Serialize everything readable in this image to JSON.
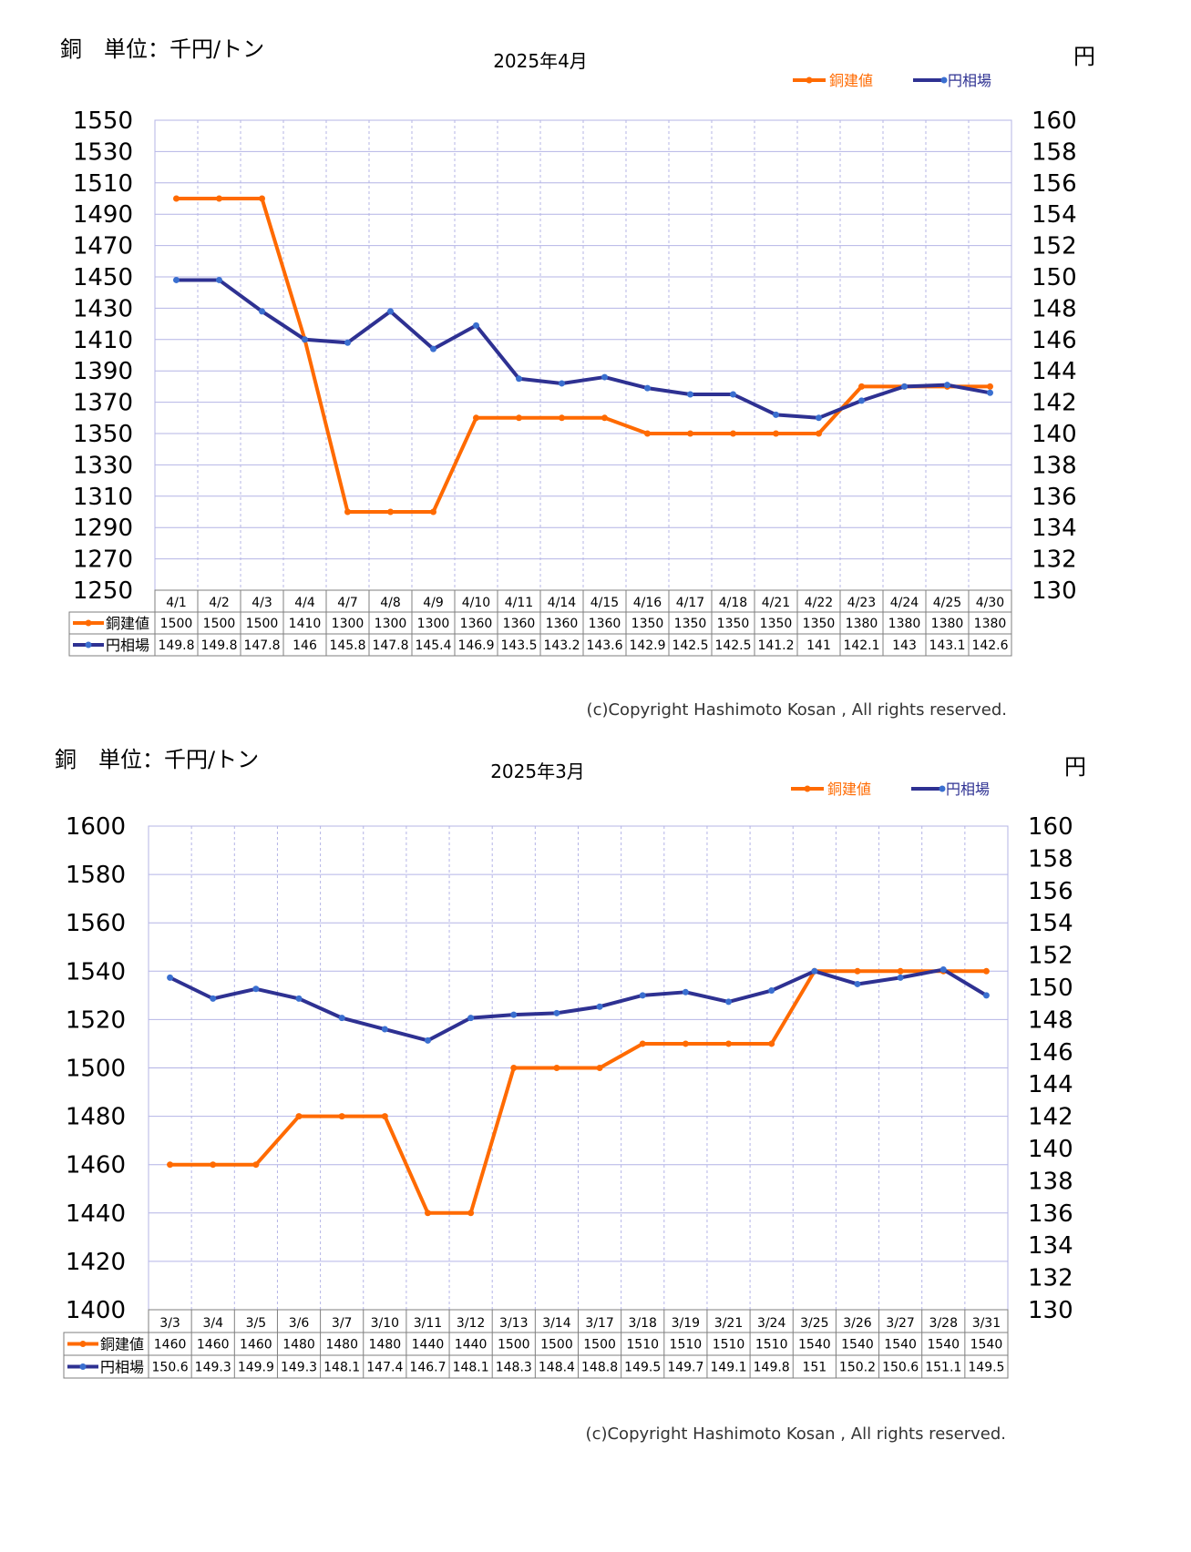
{
  "copyright": "(c)Copyright Hashimoto Kosan , All rights reserved.",
  "colors": {
    "copper": "#ff6a00",
    "yen": "#2e3192",
    "grid": "#b4b4e6",
    "border": "#7f7f7f"
  },
  "chart_data": [
    {
      "type": "line",
      "title": "2025年4月",
      "left_title": "銅　単位：千円/トン",
      "right_title": "円",
      "categories": [
        "4/1",
        "4/2",
        "4/3",
        "4/4",
        "4/7",
        "4/8",
        "4/9",
        "4/10",
        "4/11",
        "4/14",
        "4/15",
        "4/16",
        "4/17",
        "4/18",
        "4/21",
        "4/22",
        "4/23",
        "4/24",
        "4/25",
        "4/30"
      ],
      "y_left": {
        "min": 1250,
        "max": 1550,
        "step": 20,
        "ticks": [
          "1550",
          "1530",
          "1510",
          "1490",
          "1470",
          "1450",
          "1430",
          "1410",
          "1390",
          "1370",
          "1350",
          "1330",
          "1310",
          "1290",
          "1270",
          "1250"
        ]
      },
      "y_right": {
        "min": 130,
        "max": 160,
        "step": 2,
        "ticks": [
          "160",
          "158",
          "156",
          "154",
          "152",
          "150",
          "148",
          "146",
          "144",
          "142",
          "140",
          "138",
          "136",
          "134",
          "132",
          "130"
        ]
      },
      "series": [
        {
          "name": "銅建値",
          "axis": "left",
          "color": "#ff6a00",
          "values": [
            1500,
            1500,
            1500,
            1410,
            1300,
            1300,
            1300,
            1360,
            1360,
            1360,
            1360,
            1350,
            1350,
            1350,
            1350,
            1350,
            1380,
            1380,
            1380,
            1380
          ],
          "labels": [
            "1500",
            "1500",
            "1500",
            "1410",
            "1300",
            "1300",
            "1300",
            "1360",
            "1360",
            "1360",
            "1360",
            "1350",
            "1350",
            "1350",
            "1350",
            "1350",
            "1380",
            "1380",
            "1380",
            "1380"
          ]
        },
        {
          "name": "円相場",
          "axis": "right",
          "color": "#2e3192",
          "values": [
            149.8,
            149.8,
            147.8,
            146,
            145.8,
            147.8,
            145.4,
            146.9,
            143.5,
            143.2,
            143.6,
            142.9,
            142.5,
            142.5,
            141.2,
            141,
            142.1,
            143,
            143.1,
            142.6
          ],
          "labels": [
            "149.8",
            "149.8",
            "147.8",
            "146",
            "145.8",
            "147.8",
            "145.4",
            "146.9",
            "143.5",
            "143.2",
            "143.6",
            "142.9",
            "142.5",
            "142.5",
            "141.2",
            "141",
            "142.1",
            "143",
            "143.1",
            "142.6"
          ]
        }
      ],
      "legend": "top-right",
      "grid": true
    },
    {
      "type": "line",
      "title": "2025年3月",
      "left_title": "銅　単位：千円/トン",
      "right_title": "円",
      "categories": [
        "3/3",
        "3/4",
        "3/5",
        "3/6",
        "3/7",
        "3/10",
        "3/11",
        "3/12",
        "3/13",
        "3/14",
        "3/17",
        "3/18",
        "3/19",
        "3/21",
        "3/24",
        "3/25",
        "3/26",
        "3/27",
        "3/28",
        "3/31"
      ],
      "y_left": {
        "min": 1400,
        "max": 1600,
        "step": 20,
        "ticks": [
          "1600",
          "1580",
          "1560",
          "1540",
          "1520",
          "1500",
          "1480",
          "1460",
          "1440",
          "1420",
          "1400"
        ]
      },
      "y_right": {
        "min": 130,
        "max": 160,
        "step": 2,
        "ticks": [
          "160",
          "158",
          "156",
          "154",
          "152",
          "150",
          "148",
          "146",
          "144",
          "142",
          "140",
          "138",
          "136",
          "134",
          "132",
          "130"
        ]
      },
      "series": [
        {
          "name": "銅建値",
          "axis": "left",
          "color": "#ff6a00",
          "values": [
            1460,
            1460,
            1460,
            1480,
            1480,
            1480,
            1440,
            1440,
            1500,
            1500,
            1500,
            1510,
            1510,
            1510,
            1510,
            1540,
            1540,
            1540,
            1540,
            1540
          ],
          "labels": [
            "1460",
            "1460",
            "1460",
            "1480",
            "1480",
            "1480",
            "1440",
            "1440",
            "1500",
            "1500",
            "1500",
            "1510",
            "1510",
            "1510",
            "1510",
            "1540",
            "1540",
            "1540",
            "1540",
            "1540"
          ]
        },
        {
          "name": "円相場",
          "axis": "right",
          "color": "#2e3192",
          "values": [
            150.6,
            149.3,
            149.9,
            149.3,
            148.1,
            147.4,
            146.7,
            148.1,
            148.3,
            148.4,
            148.8,
            149.5,
            149.7,
            149.1,
            149.8,
            151,
            150.2,
            150.6,
            151.1,
            149.5
          ],
          "labels": [
            "150.6",
            "149.3",
            "149.9",
            "149.3",
            "148.1",
            "147.4",
            "146.7",
            "148.1",
            "148.3",
            "148.4",
            "148.8",
            "149.5",
            "149.7",
            "149.1",
            "149.8",
            "151",
            "150.2",
            "150.6",
            "151.1",
            "149.5"
          ]
        }
      ],
      "legend": "top-right",
      "grid": true
    }
  ]
}
